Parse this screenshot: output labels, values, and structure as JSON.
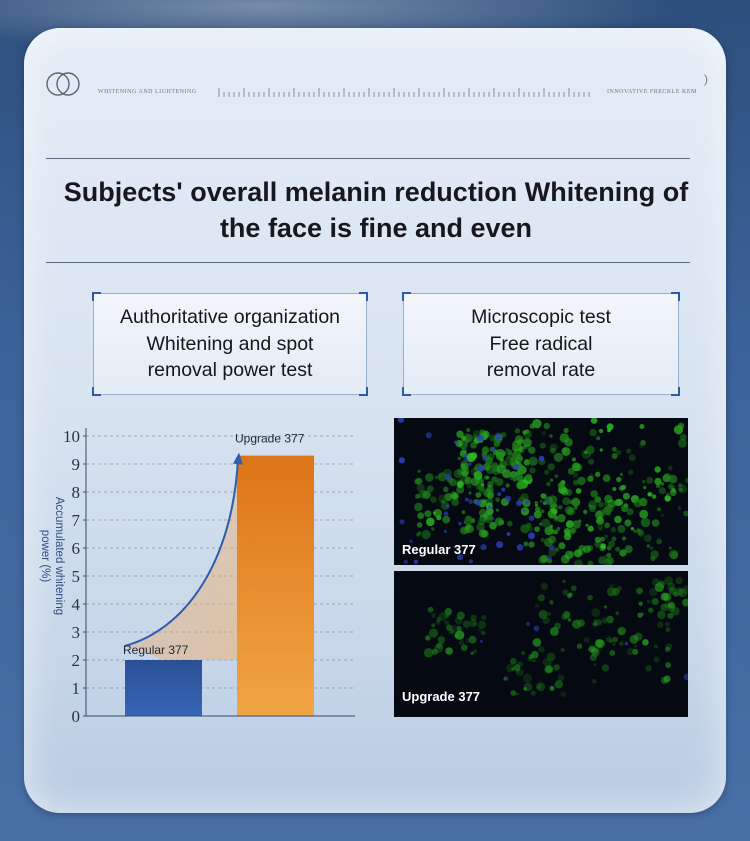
{
  "header": {
    "left_text": "WHITENING AND LIGHTENING",
    "right_text": "INNOVATIVE FRECKLE KEM",
    "paren": ")"
  },
  "headline": "Subjects' overall melanin reduction Whitening of the face is fine and even",
  "boxes": {
    "left": "Authoritative organization\nWhitening and spot\nremoval power test",
    "right": "Microscopic test\nFree radical\nremoval rate"
  },
  "chart_data": {
    "type": "bar",
    "categories": [
      "Regular 377",
      "Upgrade 377"
    ],
    "values": [
      2,
      9.3
    ],
    "ylabel": "Accumulated whitening power (%)",
    "ylim": [
      0,
      10
    ],
    "yticks": [
      0,
      1,
      2,
      3,
      4,
      5,
      6,
      7,
      8,
      9,
      10
    ],
    "grid": "dashed-horizontal",
    "colors": [
      "#2b559c",
      "#e98a2b"
    ]
  },
  "microscopy": [
    {
      "caption": "Regular 377",
      "density": "high"
    },
    {
      "caption": "Upgrade 377",
      "density": "low"
    }
  ]
}
